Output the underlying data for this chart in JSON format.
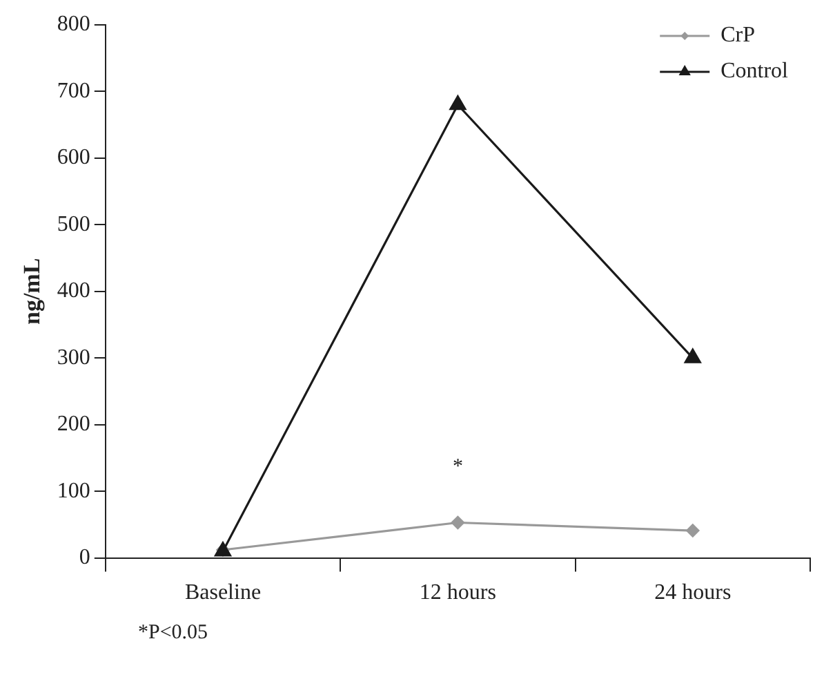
{
  "chart_data": {
    "type": "line",
    "ylabel": "ng/mL",
    "categories": [
      "Baseline",
      "12 hours",
      "24 hours"
    ],
    "series": [
      {
        "name": "CrP",
        "color": "#999999",
        "values": [
          12,
          53,
          41
        ],
        "marker": "diamond"
      },
      {
        "name": "Control",
        "color": "#1a1a1a",
        "values": [
          10,
          680,
          300
        ],
        "marker": "triangle"
      }
    ],
    "ylim": [
      0,
      800
    ],
    "yticks": [
      0,
      100,
      200,
      300,
      400,
      500,
      600,
      700,
      800
    ],
    "grid": false,
    "legend": "top right",
    "annotations": [
      {
        "text": "*",
        "x": "12 hours",
        "y": 53
      },
      "*P<0.05"
    ]
  }
}
